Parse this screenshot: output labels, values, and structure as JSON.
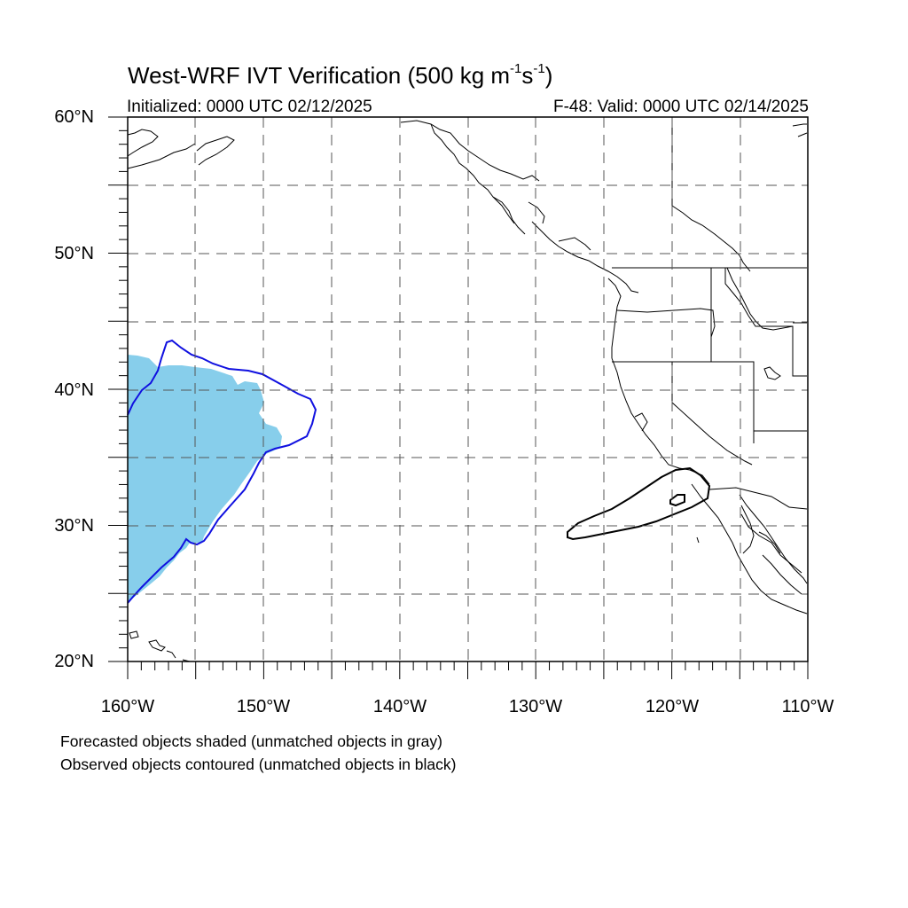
{
  "header": {
    "title_main": "West-WRF IVT Verification (500 kg m",
    "title_sup1": "-1",
    "title_mid": "s",
    "title_sup2": "-1",
    "title_end": ")",
    "initialized": "Initialized: 0000 UTC 02/12/2025",
    "valid": "F-48: Valid: 0000 UTC 02/14/2025"
  },
  "axes": {
    "lat_labels": [
      "60°N",
      "50°N",
      "40°N",
      "30°N",
      "20°N"
    ],
    "lon_labels": [
      "160°W",
      "150°W",
      "140°W",
      "130°W",
      "120°W",
      "110°W"
    ],
    "lat_range": [
      20,
      60
    ],
    "lon_range": [
      -160,
      -110
    ],
    "grid_spacing_deg": 5,
    "grid": "dashed"
  },
  "legend": {
    "line1": "Forecasted objects shaded (unmatched objects in gray)",
    "line2": "Observed objects contoured (unmatched objects in black)"
  },
  "colors": {
    "forecast_fill": "#87ceeb",
    "matched_contour": "#1010e0",
    "unmatched_contour": "#000000",
    "coastline": "#000000",
    "grid": "#555555"
  },
  "objects": {
    "forecast_shaded": "matched forecast IVT object (light blue) west of 150°W",
    "observed_matched": "blue contour around forecast object",
    "observed_unmatched": "black contour off southern California"
  }
}
